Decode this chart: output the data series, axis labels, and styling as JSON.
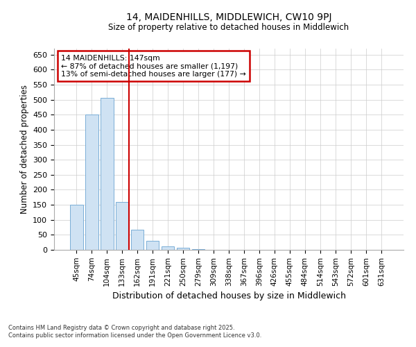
{
  "title_line1": "14, MAIDENHILLS, MIDDLEWICH, CW10 9PJ",
  "title_line2": "Size of property relative to detached houses in Middlewich",
  "xlabel": "Distribution of detached houses by size in Middlewich",
  "ylabel": "Number of detached properties",
  "categories": [
    "45sqm",
    "74sqm",
    "104sqm",
    "133sqm",
    "162sqm",
    "191sqm",
    "221sqm",
    "250sqm",
    "279sqm",
    "309sqm",
    "338sqm",
    "367sqm",
    "396sqm",
    "426sqm",
    "455sqm",
    "484sqm",
    "514sqm",
    "543sqm",
    "572sqm",
    "601sqm",
    "631sqm"
  ],
  "values": [
    150,
    450,
    507,
    160,
    67,
    30,
    12,
    7,
    3,
    1,
    0,
    0,
    0,
    0,
    0,
    0,
    0,
    0,
    0,
    0,
    0
  ],
  "bar_color": "#cfe2f3",
  "bar_edge_color": "#7aadd6",
  "vline_position": 3,
  "vline_color": "#cc0000",
  "annotation_title": "14 MAIDENHILLS: 147sqm",
  "annotation_line1": "← 87% of detached houses are smaller (1,197)",
  "annotation_line2": "13% of semi-detached houses are larger (177) →",
  "annotation_box_edgecolor": "#cc0000",
  "annotation_bg": "#ffffff",
  "ylim": [
    0,
    670
  ],
  "yticks": [
    0,
    50,
    100,
    150,
    200,
    250,
    300,
    350,
    400,
    450,
    500,
    550,
    600,
    650
  ],
  "footer_line1": "Contains HM Land Registry data © Crown copyright and database right 2025.",
  "footer_line2": "Contains public sector information licensed under the Open Government Licence v3.0.",
  "bg_color": "#ffffff",
  "grid_color": "#cccccc"
}
